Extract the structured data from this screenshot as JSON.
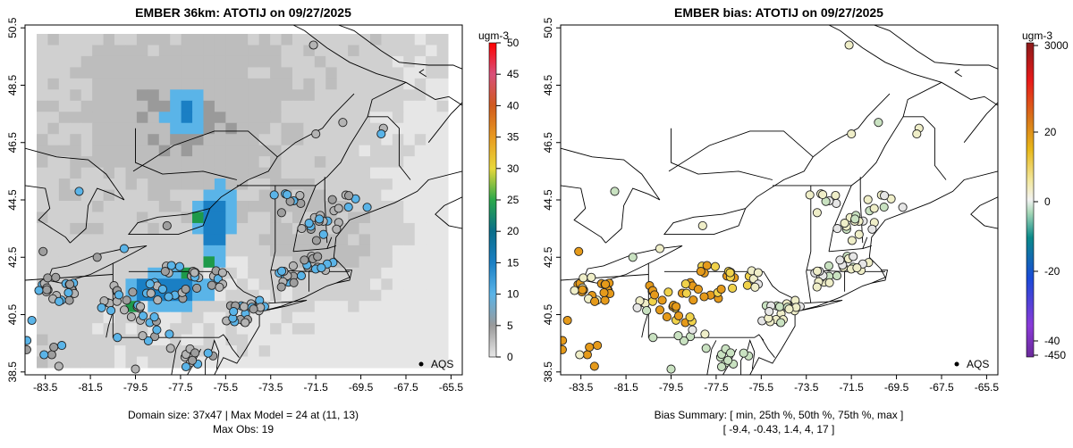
{
  "left_panel": {
    "title": "EMBER 36km: ATOTIJ on 09/27/2025",
    "units": "ugm-3",
    "legend_label": "AQS",
    "footer_line1": "Domain size: 37x47 | Max Model = 24 at (11, 13)",
    "footer_line2": "Max Obs: 19",
    "colorbar_ticks": [
      "0",
      "5",
      "10",
      "15",
      "20",
      "25",
      "30",
      "35",
      "40",
      "45",
      "50"
    ]
  },
  "right_panel": {
    "title": "EMBER bias: ATOTIJ on 09/27/2025",
    "units": "ugm-3",
    "legend_label": "AQS",
    "footer_line1": "Bias Summary: [ min, 25th %, 50th %, 75th %, max ]",
    "footer_line2": "[ -9.4,   -0.43,   1.4,   4,   17 ]",
    "colorbar_ticks": [
      "3000",
      "20",
      "0",
      "-20",
      "-40",
      "-450"
    ]
  },
  "axes": {
    "x_ticks": [
      "-83.5",
      "-81.5",
      "-79.5",
      "-77.5",
      "-75.5",
      "-73.5",
      "-71.5",
      "-69.5",
      "-67.5",
      "-65.5"
    ],
    "y_ticks": [
      "38.5",
      "40.5",
      "42.5",
      "44.5",
      "46.5",
      "48.5",
      "50.5"
    ],
    "xlim": [
      -84.4,
      -65.0
    ],
    "ylim": [
      38.4,
      50.6
    ]
  },
  "colors": {
    "gray_low": "#e6e6e6",
    "gray_mid": "#bdbdbd",
    "gray_high": "#9a9a9a",
    "blue_light": "#5ab4e8",
    "blue_dark": "#1a7fc4",
    "green": "#1e9a4a",
    "bias_orange": "#e59a1a",
    "bias_yellow": "#f0d24a",
    "bias_pale": "#efeec8",
    "bias_green": "#c9e2c1"
  }
}
